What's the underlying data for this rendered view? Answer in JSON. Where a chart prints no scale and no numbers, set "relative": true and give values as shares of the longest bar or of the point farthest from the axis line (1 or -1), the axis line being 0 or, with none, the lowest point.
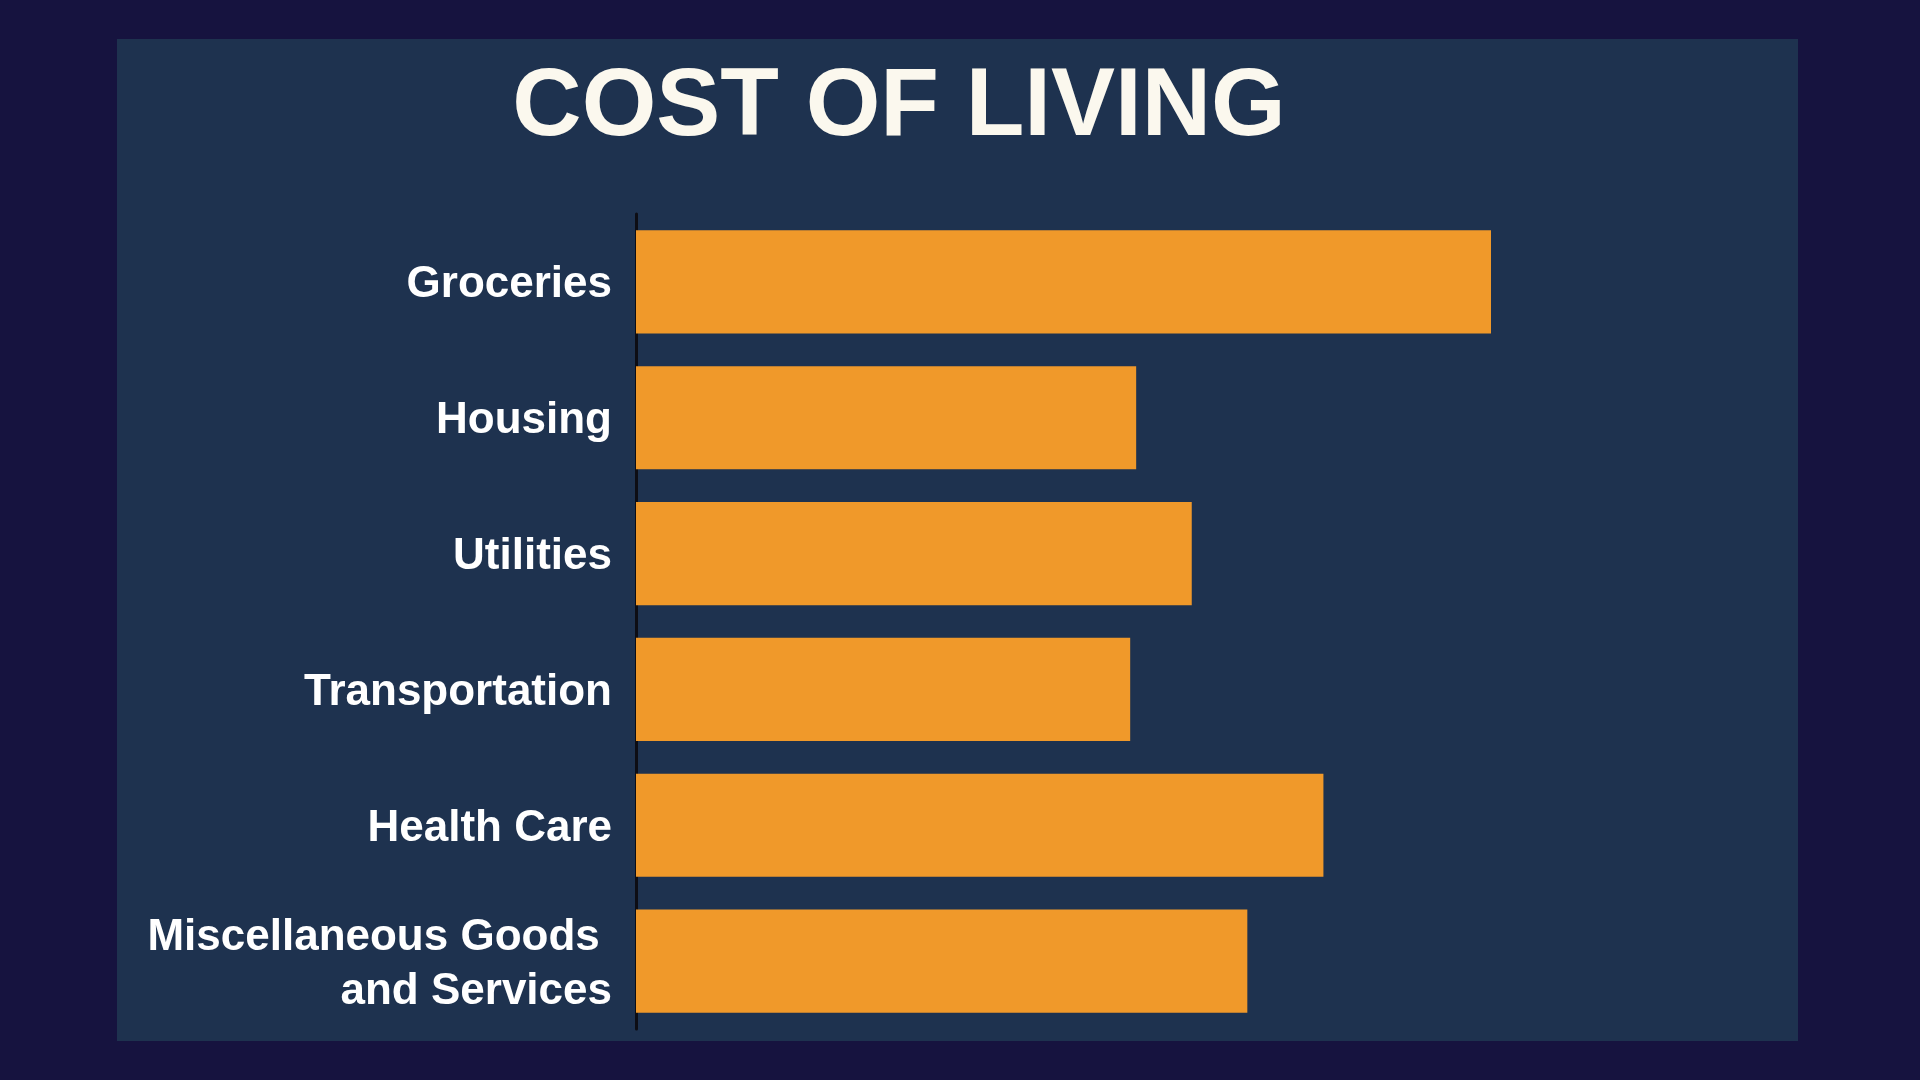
{
  "chart_data": {
    "type": "bar",
    "title": "COST OF LIVING",
    "orientation": "horizontal",
    "relative": true,
    "categories": [
      "Groceries",
      "Housing",
      "Utilities",
      "Transportation",
      "Health Care",
      "Miscellaneous Goods and Services"
    ],
    "values": [
      1,
      0.585,
      0.65,
      0.578,
      0.804,
      0.715
    ],
    "color": "#f0992a"
  }
}
